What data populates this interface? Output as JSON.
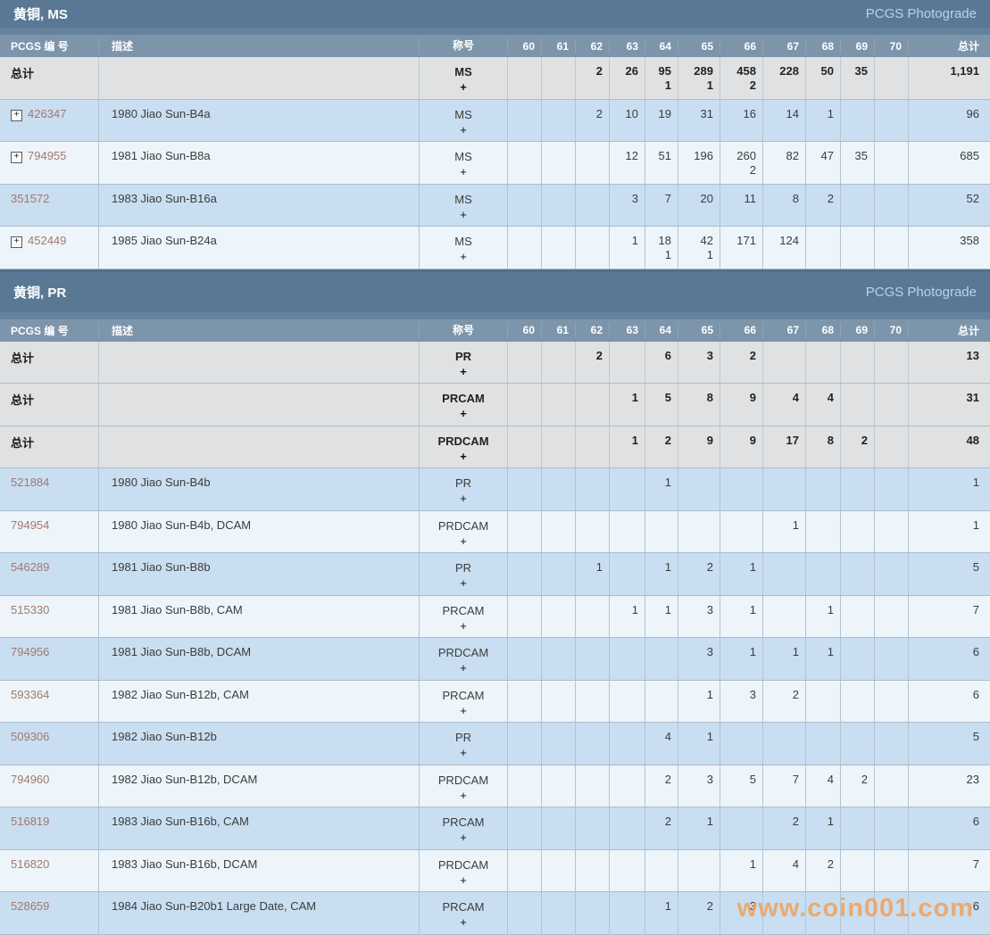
{
  "watermark": "www.coin001.com",
  "colors": {
    "title_bar": "#5a7894",
    "header_bar": "#7d95ab",
    "total_row": "#e0e1e2",
    "row_blue": "#c9def1",
    "row_light": "#eef5fa",
    "pcgs_link": "#a4786c",
    "photograde_link": "#b8d3ea",
    "watermark": "#f2a259"
  },
  "columns": {
    "pcgs": "PCGS 编 号",
    "desc": "描述",
    "designation": "称号",
    "grades": [
      "60",
      "61",
      "62",
      "63",
      "64",
      "65",
      "66",
      "67",
      "68",
      "69",
      "70"
    ],
    "total": "总计"
  },
  "total_label": "总计",
  "plus_symbol": "+",
  "tables": [
    {
      "title": "黄铜, MS",
      "photograde": "PCGS Photograde",
      "rows": [
        {
          "type": "total",
          "designation": "MS",
          "grades": [
            "",
            "",
            "2",
            "26",
            "95",
            "289",
            "458",
            "228",
            "50",
            "35",
            ""
          ],
          "plus_grades": [
            "",
            "",
            "",
            "",
            "1",
            "1",
            "2",
            "",
            "",
            "",
            ""
          ],
          "total": "1,191"
        },
        {
          "type": "data",
          "expandable": true,
          "pcgs_no": "426347",
          "desc": "1980 Jiao Sun-B4a",
          "designation": "MS",
          "grades": [
            "",
            "",
            "2",
            "10",
            "19",
            "31",
            "16",
            "14",
            "1",
            "",
            ""
          ],
          "plus_grades": [
            "",
            "",
            "",
            "",
            "",
            "",
            "",
            "",
            "",
            "",
            ""
          ],
          "total": "96"
        },
        {
          "type": "data",
          "expandable": true,
          "pcgs_no": "794955",
          "desc": "1981 Jiao Sun-B8a",
          "designation": "MS",
          "grades": [
            "",
            "",
            "",
            "12",
            "51",
            "196",
            "260",
            "82",
            "47",
            "35",
            ""
          ],
          "plus_grades": [
            "",
            "",
            "",
            "",
            "",
            "",
            "2",
            "",
            "",
            "",
            ""
          ],
          "total": "685"
        },
        {
          "type": "data",
          "expandable": false,
          "pcgs_no": "351572",
          "desc": "1983 Jiao Sun-B16a",
          "designation": "MS",
          "grades": [
            "",
            "",
            "",
            "3",
            "7",
            "20",
            "11",
            "8",
            "2",
            "",
            ""
          ],
          "plus_grades": [
            "",
            "",
            "",
            "",
            "",
            "",
            "",
            "",
            "",
            "",
            ""
          ],
          "total": "52"
        },
        {
          "type": "data",
          "expandable": true,
          "pcgs_no": "452449",
          "desc": "1985 Jiao Sun-B24a",
          "designation": "MS",
          "grades": [
            "",
            "",
            "",
            "1",
            "18",
            "42",
            "171",
            "124",
            "",
            "",
            ""
          ],
          "plus_grades": [
            "",
            "",
            "",
            "",
            "1",
            "1",
            "",
            "",
            "",
            "",
            ""
          ],
          "total": "358"
        }
      ]
    },
    {
      "title": "黄铜, PR",
      "photograde": "PCGS Photograde",
      "rows": [
        {
          "type": "total",
          "designation": "PR",
          "grades": [
            "",
            "",
            "2",
            "",
            "6",
            "3",
            "2",
            "",
            "",
            "",
            ""
          ],
          "plus_grades": [
            "",
            "",
            "",
            "",
            "",
            "",
            "",
            "",
            "",
            "",
            ""
          ],
          "total": "13"
        },
        {
          "type": "total",
          "designation": "PRCAM",
          "grades": [
            "",
            "",
            "",
            "1",
            "5",
            "8",
            "9",
            "4",
            "4",
            "",
            ""
          ],
          "plus_grades": [
            "",
            "",
            "",
            "",
            "",
            "",
            "",
            "",
            "",
            "",
            ""
          ],
          "total": "31"
        },
        {
          "type": "total",
          "designation": "PRDCAM",
          "grades": [
            "",
            "",
            "",
            "1",
            "2",
            "9",
            "9",
            "17",
            "8",
            "2",
            ""
          ],
          "plus_grades": [
            "",
            "",
            "",
            "",
            "",
            "",
            "",
            "",
            "",
            "",
            ""
          ],
          "total": "48"
        },
        {
          "type": "data",
          "expandable": false,
          "pcgs_no": "521884",
          "desc": "1980 Jiao Sun-B4b",
          "designation": "PR",
          "grades": [
            "",
            "",
            "",
            "",
            "1",
            "",
            "",
            "",
            "",
            "",
            ""
          ],
          "plus_grades": [
            "",
            "",
            "",
            "",
            "",
            "",
            "",
            "",
            "",
            "",
            ""
          ],
          "total": "1"
        },
        {
          "type": "data",
          "expandable": false,
          "pcgs_no": "794954",
          "desc": "1980 Jiao Sun-B4b, DCAM",
          "designation": "PRDCAM",
          "grades": [
            "",
            "",
            "",
            "",
            "",
            "",
            "",
            "1",
            "",
            "",
            ""
          ],
          "plus_grades": [
            "",
            "",
            "",
            "",
            "",
            "",
            "",
            "",
            "",
            "",
            ""
          ],
          "total": "1"
        },
        {
          "type": "data",
          "expandable": false,
          "pcgs_no": "546289",
          "desc": "1981 Jiao Sun-B8b",
          "designation": "PR",
          "grades": [
            "",
            "",
            "1",
            "",
            "1",
            "2",
            "1",
            "",
            "",
            "",
            ""
          ],
          "plus_grades": [
            "",
            "",
            "",
            "",
            "",
            "",
            "",
            "",
            "",
            "",
            ""
          ],
          "total": "5"
        },
        {
          "type": "data",
          "expandable": false,
          "pcgs_no": "515330",
          "desc": "1981 Jiao Sun-B8b, CAM",
          "designation": "PRCAM",
          "grades": [
            "",
            "",
            "",
            "1",
            "1",
            "3",
            "1",
            "",
            "1",
            "",
            ""
          ],
          "plus_grades": [
            "",
            "",
            "",
            "",
            "",
            "",
            "",
            "",
            "",
            "",
            ""
          ],
          "total": "7"
        },
        {
          "type": "data",
          "expandable": false,
          "pcgs_no": "794956",
          "desc": "1981 Jiao Sun-B8b, DCAM",
          "designation": "PRDCAM",
          "grades": [
            "",
            "",
            "",
            "",
            "",
            "3",
            "1",
            "1",
            "1",
            "",
            ""
          ],
          "plus_grades": [
            "",
            "",
            "",
            "",
            "",
            "",
            "",
            "",
            "",
            "",
            ""
          ],
          "total": "6"
        },
        {
          "type": "data",
          "expandable": false,
          "pcgs_no": "593364",
          "desc": "1982 Jiao Sun-B12b, CAM",
          "designation": "PRCAM",
          "grades": [
            "",
            "",
            "",
            "",
            "",
            "1",
            "3",
            "2",
            "",
            "",
            ""
          ],
          "plus_grades": [
            "",
            "",
            "",
            "",
            "",
            "",
            "",
            "",
            "",
            "",
            ""
          ],
          "total": "6"
        },
        {
          "type": "data",
          "expandable": false,
          "pcgs_no": "509306",
          "desc": "1982 Jiao Sun-B12b",
          "designation": "PR",
          "grades": [
            "",
            "",
            "",
            "",
            "4",
            "1",
            "",
            "",
            "",
            "",
            ""
          ],
          "plus_grades": [
            "",
            "",
            "",
            "",
            "",
            "",
            "",
            "",
            "",
            "",
            ""
          ],
          "total": "5"
        },
        {
          "type": "data",
          "expandable": false,
          "pcgs_no": "794960",
          "desc": "1982 Jiao Sun-B12b, DCAM",
          "designation": "PRDCAM",
          "grades": [
            "",
            "",
            "",
            "",
            "2",
            "3",
            "5",
            "7",
            "4",
            "2",
            ""
          ],
          "plus_grades": [
            "",
            "",
            "",
            "",
            "",
            "",
            "",
            "",
            "",
            "",
            ""
          ],
          "total": "23"
        },
        {
          "type": "data",
          "expandable": false,
          "pcgs_no": "516819",
          "desc": "1983 Jiao Sun-B16b, CAM",
          "designation": "PRCAM",
          "grades": [
            "",
            "",
            "",
            "",
            "2",
            "1",
            "",
            "2",
            "1",
            "",
            ""
          ],
          "plus_grades": [
            "",
            "",
            "",
            "",
            "",
            "",
            "",
            "",
            "",
            "",
            ""
          ],
          "total": "6"
        },
        {
          "type": "data",
          "expandable": false,
          "pcgs_no": "516820",
          "desc": "1983 Jiao Sun-B16b, DCAM",
          "designation": "PRDCAM",
          "grades": [
            "",
            "",
            "",
            "",
            "",
            "",
            "1",
            "4",
            "2",
            "",
            ""
          ],
          "plus_grades": [
            "",
            "",
            "",
            "",
            "",
            "",
            "",
            "",
            "",
            "",
            ""
          ],
          "total": "7"
        },
        {
          "type": "data",
          "expandable": false,
          "pcgs_no": "528659",
          "desc": "1984 Jiao Sun-B20b1 Large Date, CAM",
          "designation": "PRCAM",
          "grades": [
            "",
            "",
            "",
            "",
            "1",
            "2",
            "3",
            "",
            "",
            "",
            ""
          ],
          "plus_grades": [
            "",
            "",
            "",
            "",
            "",
            "",
            "",
            "",
            "",
            "",
            ""
          ],
          "total": "6"
        }
      ]
    }
  ]
}
